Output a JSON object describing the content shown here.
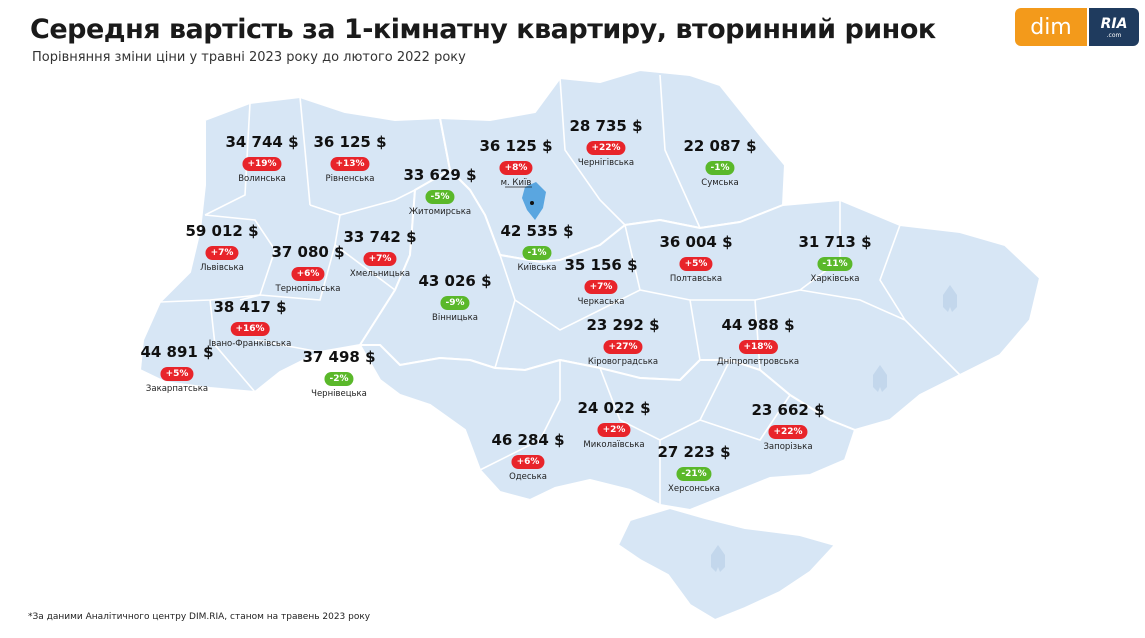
{
  "title": "Середня вартість за 1-кімнатну квартиру, вторинний ринок",
  "subtitle": "Порівняння зміни ціни у травні 2023 року до лютого 2022 року",
  "footnote": "*За даними Аналітичного центру DIM.RIA, станом на травень 2023 року",
  "logo": {
    "dim": "dim",
    "ria": "RIA",
    "ria_domain": ".com"
  },
  "colors": {
    "map_fill": "#d7e6f5",
    "map_border": "#ffffff",
    "up": "#e8242a",
    "down": "#5ab82a",
    "kyiv": "#5aa6e0"
  },
  "regions": [
    {
      "name": "Волинська",
      "price": "34 744 $",
      "change": "+19%",
      "trend": "up"
    },
    {
      "name": "Рівненська",
      "price": "36 125 $",
      "change": "+13%",
      "trend": "up"
    },
    {
      "name": "Житомирська",
      "price": "33 629 $",
      "change": "-5%",
      "trend": "down"
    },
    {
      "name": "м. Київ",
      "price": "36 125 $",
      "change": "+8%",
      "trend": "up"
    },
    {
      "name": "Чернігівська",
      "price": "28 735 $",
      "change": "+22%",
      "trend": "up"
    },
    {
      "name": "Сумська",
      "price": "22 087 $",
      "change": "-1%",
      "trend": "down"
    },
    {
      "name": "Львівська",
      "price": "59 012 $",
      "change": "+7%",
      "trend": "up"
    },
    {
      "name": "Тернопільська",
      "price": "37 080 $",
      "change": "+6%",
      "trend": "up"
    },
    {
      "name": "Хмельницька",
      "price": "33 742 $",
      "change": "+7%",
      "trend": "up"
    },
    {
      "name": "Київська",
      "price": "42 535 $",
      "change": "-1%",
      "trend": "down"
    },
    {
      "name": "Полтавська",
      "price": "36 004 $",
      "change": "+5%",
      "trend": "up"
    },
    {
      "name": "Харківська",
      "price": "31 713 $",
      "change": "-11%",
      "trend": "down"
    },
    {
      "name": "Черкаська",
      "price": "35 156 $",
      "change": "+7%",
      "trend": "up"
    },
    {
      "name": "Вінницька",
      "price": "43 026 $",
      "change": "-9%",
      "trend": "down"
    },
    {
      "name": "Івано-Франківська",
      "price": "38 417 $",
      "change": "+16%",
      "trend": "up"
    },
    {
      "name": "Закарпатська",
      "price": "44 891 $",
      "change": "+5%",
      "trend": "up"
    },
    {
      "name": "Чернівецька",
      "price": "37 498 $",
      "change": "-2%",
      "trend": "down"
    },
    {
      "name": "Кіровоградська",
      "price": "23 292 $",
      "change": "+27%",
      "trend": "up"
    },
    {
      "name": "Дніпропетровська",
      "price": "44 988 $",
      "change": "+18%",
      "trend": "up"
    },
    {
      "name": "Миколаївська",
      "price": "24 022 $",
      "change": "+2%",
      "trend": "up"
    },
    {
      "name": "Одеська",
      "price": "46 284 $",
      "change": "+6%",
      "trend": "up"
    },
    {
      "name": "Херсонська",
      "price": "27 223 $",
      "change": "-21%",
      "trend": "down"
    },
    {
      "name": "Запорізька",
      "price": "23 662 $",
      "change": "+22%",
      "trend": "up"
    }
  ]
}
